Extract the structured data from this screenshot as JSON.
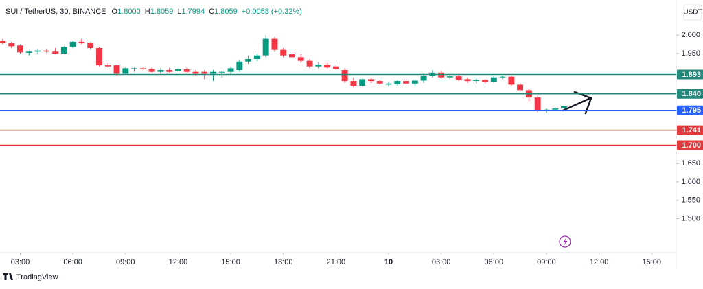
{
  "header": {
    "symbol": "SUI / TetherUS, 30, BINANCE",
    "ohlc": [
      {
        "prefix": "O",
        "value": "1.8000"
      },
      {
        "prefix": "H",
        "value": "1.8059"
      },
      {
        "prefix": "L",
        "value": "1.7994"
      },
      {
        "prefix": "C",
        "value": "1.8059"
      }
    ],
    "change": "+0.0058 (+0.32%)",
    "currency": "USDT"
  },
  "footer": {
    "brand": "TradingView"
  },
  "chart_data": {
    "type": "candlestick",
    "up_color": "#089981",
    "down_color": "#f23645",
    "open": [
      1.985,
      1.978,
      1.972,
      1.952,
      1.955,
      1.958,
      1.955,
      1.95,
      1.968,
      1.982,
      1.98,
      1.965,
      1.918,
      1.918,
      1.895,
      1.908,
      1.91,
      1.908,
      1.9,
      1.905,
      1.903,
      1.907,
      1.9,
      1.9,
      1.895,
      1.898,
      1.9,
      1.905,
      1.928,
      1.935,
      1.945,
      1.99,
      1.96,
      1.948,
      1.94,
      1.93,
      1.915,
      1.92,
      1.915,
      1.905,
      1.875,
      1.862,
      1.88,
      1.875,
      1.865,
      1.866,
      1.875,
      1.868,
      1.876,
      1.89,
      1.898,
      1.885,
      1.888,
      1.88,
      1.875,
      1.878,
      1.872,
      1.885,
      1.887,
      1.865,
      1.85,
      1.83,
      1.795,
      1.797,
      1.8
    ],
    "high": [
      1.99,
      1.982,
      1.975,
      1.958,
      1.962,
      1.962,
      1.965,
      1.97,
      1.985,
      1.99,
      1.982,
      1.968,
      1.925,
      1.92,
      1.912,
      1.912,
      1.915,
      1.912,
      1.91,
      1.91,
      1.91,
      1.912,
      1.905,
      1.905,
      1.905,
      1.905,
      1.915,
      1.932,
      1.945,
      1.95,
      2.0,
      1.995,
      1.965,
      1.955,
      1.948,
      1.935,
      1.925,
      1.925,
      1.92,
      1.91,
      1.885,
      1.885,
      1.885,
      1.878,
      1.872,
      1.878,
      1.885,
      1.88,
      1.895,
      1.905,
      1.902,
      1.892,
      1.892,
      1.885,
      1.882,
      1.88,
      1.888,
      1.89,
      1.89,
      1.87,
      1.855,
      1.835,
      1.8,
      1.803,
      1.8059
    ],
    "low": [
      1.975,
      1.965,
      1.95,
      1.945,
      1.95,
      1.952,
      1.948,
      1.948,
      1.965,
      1.975,
      1.96,
      1.915,
      1.912,
      1.89,
      1.893,
      1.9,
      1.905,
      1.898,
      1.895,
      1.898,
      1.898,
      1.898,
      1.89,
      1.88,
      1.875,
      1.885,
      1.895,
      1.9,
      1.922,
      1.93,
      1.94,
      1.955,
      1.94,
      1.935,
      1.925,
      1.91,
      1.91,
      1.91,
      1.905,
      1.87,
      1.858,
      1.858,
      1.87,
      1.865,
      1.86,
      1.862,
      1.865,
      1.86,
      1.87,
      1.885,
      1.882,
      1.88,
      1.875,
      1.87,
      1.868,
      1.868,
      1.87,
      1.88,
      1.862,
      1.845,
      1.82,
      1.79,
      1.788,
      1.794,
      1.7994
    ],
    "close": [
      1.978,
      1.97,
      1.953,
      1.955,
      1.958,
      1.955,
      1.95,
      1.968,
      1.982,
      1.978,
      1.965,
      1.918,
      1.915,
      1.895,
      1.91,
      1.91,
      1.908,
      1.9,
      1.905,
      1.9,
      1.907,
      1.9,
      1.895,
      1.895,
      1.9,
      1.9,
      1.91,
      1.928,
      1.935,
      1.945,
      1.99,
      1.96,
      1.945,
      1.94,
      1.93,
      1.915,
      1.92,
      1.912,
      1.908,
      1.875,
      1.862,
      1.88,
      1.875,
      1.868,
      1.868,
      1.875,
      1.868,
      1.876,
      1.89,
      1.898,
      1.885,
      1.888,
      1.878,
      1.875,
      1.878,
      1.872,
      1.885,
      1.887,
      1.865,
      1.85,
      1.83,
      1.795,
      1.797,
      1.8,
      1.8059
    ],
    "xlim": [
      -0.31,
      76.8
    ],
    "xticks": [
      {
        "value": 2,
        "label": "03:00"
      },
      {
        "value": 8,
        "label": "06:00"
      },
      {
        "value": 14,
        "label": "09:00"
      },
      {
        "value": 20,
        "label": "12:00"
      },
      {
        "value": 26,
        "label": "15:00"
      },
      {
        "value": 32,
        "label": "18:00"
      },
      {
        "value": 38,
        "label": "21:00"
      },
      {
        "value": 44,
        "label": "10"
      },
      {
        "value": 50,
        "label": "03:00"
      },
      {
        "value": 56,
        "label": "06:00"
      },
      {
        "value": 62,
        "label": "09:00"
      },
      {
        "value": 68,
        "label": "12:00"
      },
      {
        "value": 74,
        "label": "15:00"
      }
    ],
    "ylim": [
      1.409,
      2.096
    ],
    "yticks": [
      {
        "value": 2.0,
        "label": "2.000"
      },
      {
        "value": 1.95,
        "label": "1.950"
      },
      {
        "value": 1.65,
        "label": "1.650"
      },
      {
        "value": 1.6,
        "label": "1.600"
      },
      {
        "value": 1.55,
        "label": "1.550"
      },
      {
        "value": 1.5,
        "label": "1.500"
      }
    ],
    "levels": [
      {
        "value": 1.893,
        "label": "1.893",
        "color": "#22887a"
      },
      {
        "value": 1.84,
        "label": "1.840",
        "color": "#22887a"
      },
      {
        "value": 1.795,
        "label": "1.795",
        "color": "#2962ff"
      },
      {
        "value": 1.741,
        "label": "1.741",
        "color": "#e03a3e"
      },
      {
        "value": 1.7,
        "label": "1.700",
        "color": "#e03a3e"
      }
    ]
  }
}
